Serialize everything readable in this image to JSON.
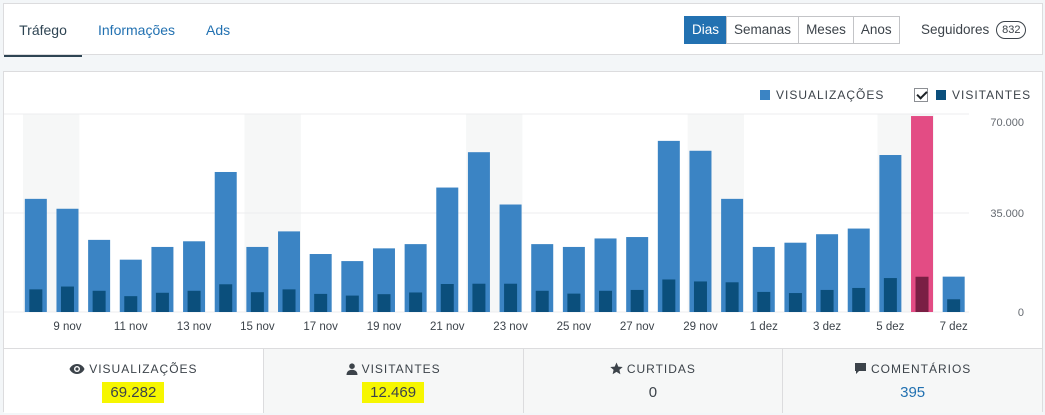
{
  "tabs": [
    "Tráfego",
    "Informações",
    "Ads"
  ],
  "period_buttons": [
    "Dias",
    "Semanas",
    "Meses",
    "Anos"
  ],
  "period_active": "Dias",
  "followers": {
    "label": "Seguidores",
    "count": "832"
  },
  "legend": {
    "views_label": "VISUALIZAÇÕES",
    "visitors_label": "VISITANTES",
    "views_color": "#3b84c4",
    "visitors_color": "#0b4f7c",
    "highlight_color": "#e34c84",
    "highlight_dark": "#7a1f44"
  },
  "chart_data": {
    "type": "bar",
    "y_ticks": [
      "70.000",
      "35.000",
      "0"
    ],
    "ylim": [
      0,
      70000
    ],
    "x_tick_labels": [
      "9 nov",
      "11 nov",
      "13 nov",
      "15 nov",
      "17 nov",
      "19 nov",
      "21 nov",
      "23 nov",
      "25 nov",
      "27 nov",
      "29 nov",
      "1 dez",
      "3 dez",
      "5 dez",
      "7 dez"
    ],
    "categories": [
      "8 nov",
      "9 nov",
      "10 nov",
      "11 nov",
      "12 nov",
      "13 nov",
      "14 nov",
      "15 nov",
      "16 nov",
      "17 nov",
      "18 nov",
      "19 nov",
      "20 nov",
      "21 nov",
      "22 nov",
      "23 nov",
      "24 nov",
      "25 nov",
      "26 nov",
      "27 nov",
      "28 nov",
      "29 nov",
      "30 nov",
      "1 dez",
      "2 dez",
      "3 dez",
      "4 dez",
      "5 dez",
      "6 dez",
      "7 dez"
    ],
    "series": [
      {
        "name": "VISUALIZAÇÕES",
        "values": [
          40000,
          36500,
          25500,
          18500,
          23000,
          25000,
          49500,
          23000,
          28500,
          20500,
          18000,
          22500,
          24000,
          44000,
          56500,
          38000,
          24000,
          23000,
          26000,
          26500,
          60500,
          57000,
          40000,
          23000,
          24500,
          27500,
          29500,
          55500,
          69282,
          12500
        ]
      },
      {
        "name": "VISITANTES",
        "values": [
          8000,
          9000,
          7500,
          5600,
          6800,
          7500,
          9800,
          7000,
          8000,
          6400,
          5800,
          6300,
          6900,
          9900,
          10000,
          10000,
          7500,
          6500,
          7500,
          7800,
          11500,
          10800,
          10500,
          7100,
          6700,
          7800,
          8500,
          12000,
          12469,
          4500
        ]
      }
    ],
    "weekend_bands": [
      0,
      7,
      14,
      21,
      27
    ]
  },
  "stats": [
    {
      "label": "VISUALIZAÇÕES",
      "value": "69.282",
      "icon": "eye-icon"
    },
    {
      "label": "VISITANTES",
      "value": "12.469",
      "icon": "person-icon"
    },
    {
      "label": "CURTIDAS",
      "value": "0",
      "icon": "star-icon"
    },
    {
      "label": "COMENTÁRIOS",
      "value": "395",
      "icon": "comment-icon"
    }
  ]
}
